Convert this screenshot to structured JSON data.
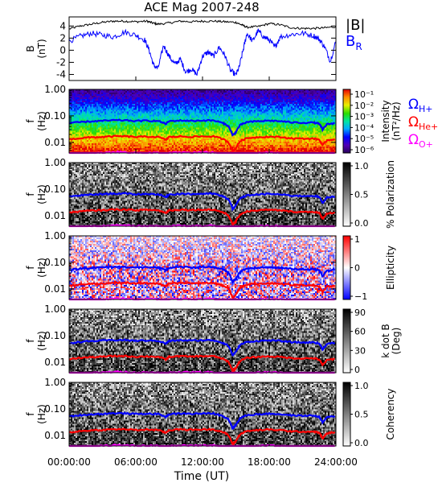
{
  "chart_data": [
    {
      "type": "line",
      "title": "ACE Mag 2007-248",
      "ylabel_name": "B",
      "ylabel_unit": "(nT)",
      "ylim": [
        -5,
        5.5
      ],
      "yticks": [
        -4,
        -2,
        0,
        2,
        4
      ],
      "xlim": [
        0,
        24
      ],
      "series": [
        {
          "name": "|B|",
          "color": "#000000",
          "x": [
            0,
            1,
            2,
            3,
            4,
            5,
            6,
            7,
            7.5,
            8,
            9,
            10,
            11,
            12,
            13,
            14,
            15,
            15.5,
            16,
            17,
            18,
            19,
            20,
            21,
            22,
            23,
            24
          ],
          "y": [
            3.5,
            4.0,
            4.3,
            4.6,
            4.8,
            4.8,
            4.7,
            4.8,
            4.5,
            4.3,
            4.5,
            4.8,
            4.7,
            4.8,
            4.8,
            4.7,
            4.6,
            4.2,
            3.8,
            3.9,
            4.4,
            4.2,
            3.7,
            3.6,
            3.6,
            3.7,
            3.9
          ]
        },
        {
          "name": "B",
          "sub": "R",
          "color": "#0000ff",
          "x": [
            0,
            1,
            2,
            3,
            4,
            5,
            6,
            6.8,
            7.2,
            7.6,
            8,
            8.5,
            9,
            9.5,
            10,
            10.5,
            11,
            11.5,
            12,
            12.5,
            13,
            13.5,
            14,
            14.5,
            15,
            15.3,
            15.7,
            16,
            16.5,
            17,
            17.5,
            18,
            18.5,
            19,
            20,
            21,
            22,
            22.5,
            23,
            23.5,
            24
          ],
          "y": [
            1.5,
            2.3,
            2.8,
            2.5,
            2.2,
            3.0,
            2.5,
            1.7,
            0.0,
            -2.5,
            -3.0,
            0.8,
            -1.0,
            -2.3,
            -1.5,
            -3.6,
            -3.1,
            -4.0,
            -1.0,
            -0.3,
            -1.0,
            0.5,
            -0.8,
            -3.3,
            -4.1,
            -2.8,
            0.4,
            2.8,
            1.5,
            3.2,
            2.2,
            1.7,
            0.5,
            2.2,
            2.6,
            2.8,
            2.4,
            1.8,
            0.5,
            -1.8,
            1.5
          ]
        }
      ]
    },
    {
      "type": "heatmap",
      "quantity": "Intensity",
      "colorbar_label": "Intensity",
      "colorbar_unit": "(nT²/Hz)",
      "colorbar_ticks": [
        "10⁻¹",
        "10⁻²",
        "10⁻³",
        "10⁻⁴",
        "10⁻⁵",
        "10⁻⁶"
      ],
      "colormap": "rainbow",
      "legend": [
        {
          "symbol": "Ω",
          "sub": "H+",
          "color": "#0000ff"
        },
        {
          "symbol": "Ω",
          "sub": "He+",
          "color": "#ff0000"
        },
        {
          "symbol": "Ω",
          "sub": "O+",
          "color": "#ff00ff"
        }
      ]
    },
    {
      "type": "heatmap",
      "quantity": "% Polarization",
      "colorbar_label": "% Polarization",
      "colorbar_ticks": [
        "1.0",
        "0.5",
        "0.0"
      ],
      "colormap": "greys"
    },
    {
      "type": "heatmap",
      "quantity": "Ellipticity",
      "colorbar_label": "Ellipticity",
      "colorbar_ticks": [
        "1",
        "0",
        "−1"
      ],
      "colormap": "blue-white-red"
    },
    {
      "type": "heatmap",
      "quantity": "k dot B",
      "colorbar_label": "k dot B",
      "colorbar_unit": "(Deg)",
      "colorbar_ticks": [
        "90",
        "60",
        "30",
        "0"
      ],
      "colormap": "greys"
    },
    {
      "type": "heatmap",
      "quantity": "Coherency",
      "colorbar_label": "Coherency",
      "colorbar_ticks": [
        "1.0",
        "0.5",
        "0.0"
      ],
      "colormap": "greys"
    }
  ],
  "spectrogram_axes": {
    "ylabel_name": "f",
    "ylabel_unit": "(Hz)",
    "yscale": "log",
    "ylim": [
      0.004,
      1.0
    ],
    "yticks": [
      1.0,
      0.1,
      0.01
    ],
    "ytick_labels": [
      "1.00",
      "0.10",
      "0.01"
    ]
  },
  "gyrofrequency_lines": {
    "x": [
      0,
      1,
      2,
      3,
      4,
      5,
      6,
      7,
      8,
      8.7,
      9,
      10,
      11,
      12,
      13,
      13.8,
      14.3,
      14.7,
      15.0,
      15.4,
      16,
      17,
      18,
      19,
      20,
      21,
      22,
      22.5,
      22.8,
      23.2,
      24
    ],
    "H+": [
      0.052,
      0.058,
      0.062,
      0.065,
      0.068,
      0.068,
      0.064,
      0.066,
      0.064,
      0.05,
      0.063,
      0.067,
      0.065,
      0.067,
      0.067,
      0.054,
      0.042,
      0.018,
      0.024,
      0.045,
      0.058,
      0.063,
      0.066,
      0.063,
      0.057,
      0.055,
      0.056,
      0.05,
      0.03,
      0.048,
      0.054
    ],
    "He+": [
      0.013,
      0.0145,
      0.0155,
      0.016,
      0.017,
      0.017,
      0.016,
      0.0165,
      0.016,
      0.0125,
      0.016,
      0.0168,
      0.0163,
      0.0168,
      0.0168,
      0.0135,
      0.0105,
      0.0045,
      0.006,
      0.0112,
      0.0145,
      0.0158,
      0.0165,
      0.0158,
      0.0142,
      0.0138,
      0.014,
      0.0125,
      0.0075,
      0.012,
      0.0135
    ],
    "O+": [
      0.0033,
      0.0036,
      0.0039,
      0.004,
      0.0043,
      0.0043,
      0.004,
      0.0041,
      0.004,
      0.0031,
      0.004,
      0.0042,
      0.0041,
      0.0042,
      0.0042,
      0.0034,
      0.0026,
      0.0011,
      0.0015,
      0.0028,
      0.0036,
      0.004,
      0.0041,
      0.004,
      0.0036,
      0.0034,
      0.0035,
      0.0031,
      0.0019,
      0.003,
      0.0034
    ]
  },
  "time_axis": {
    "xlabel": "Time (UT)",
    "xlim": [
      0,
      24
    ],
    "xticks": [
      0,
      6,
      12,
      18,
      24
    ],
    "xtick_labels": [
      "00:00:00",
      "06:00:00",
      "12:00:00",
      "18:00:00",
      "24:00:00"
    ]
  }
}
